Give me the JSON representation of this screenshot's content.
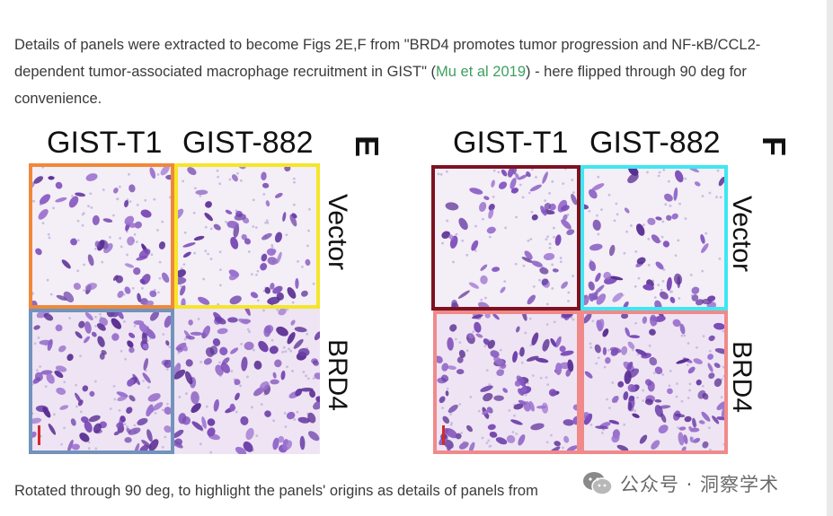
{
  "paragraph": {
    "before_link": "Details of panels were extracted to become Figs 2E,F from \"BRD4 promotes tumor progression and NF-κB/CCL2-dependent tumor-associated macrophage recruitment in GIST\" (",
    "link_text": "Mu et al 2019",
    "after_link": ") - here flipped through 90 deg for convenience."
  },
  "figures": [
    {
      "id": "E",
      "columns": [
        "GIST-T1",
        "GIST-882"
      ],
      "rows": [
        "Vector",
        "BRD4"
      ],
      "borders": {
        "top_left": "#f0883a",
        "top_right": "#f5e52a",
        "bottom_left": "#7193bc",
        "bottom_right": "none"
      }
    },
    {
      "id": "F",
      "columns": [
        "GIST-T1",
        "GIST-882"
      ],
      "rows": [
        "Vector",
        "BRD4"
      ],
      "borders": {
        "top_left": "#7d1221",
        "top_right": "#3ee7f2",
        "bottom_left": "#f08a8a",
        "bottom_right": "#f08a8a"
      }
    }
  ],
  "bottom_text": "Rotated through 90 deg, to highlight the panels' origins as details of panels from",
  "watermark": {
    "text": "公众号 · 洞察学术",
    "icon": "wechat-icon"
  }
}
